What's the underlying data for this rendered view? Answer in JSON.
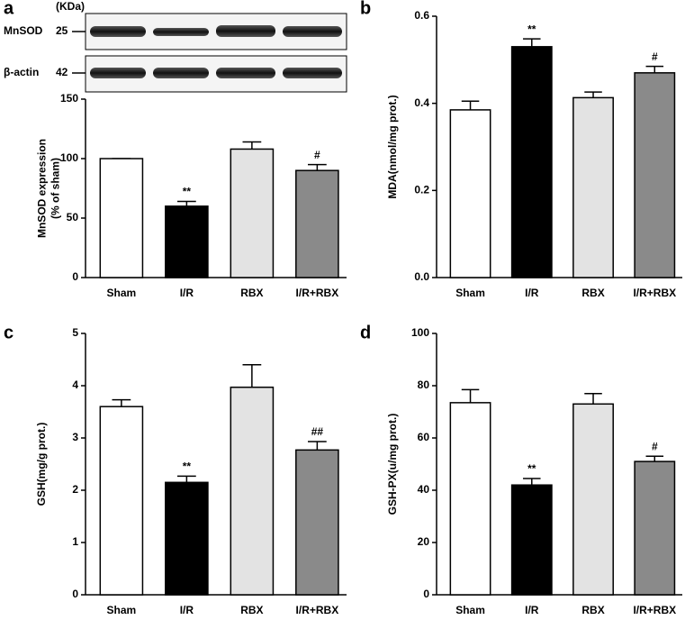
{
  "blot": {
    "unit": "(KDa)",
    "rows": [
      {
        "name": "MnSOD",
        "kda": 25
      },
      {
        "name": "β-actin",
        "kda": 42
      }
    ]
  },
  "chart_data": [
    {
      "type": "bar",
      "panel": "a",
      "ylabel": [
        "MnSOD expression",
        "(% of sham)"
      ],
      "categories": [
        "Sham",
        "I/R",
        "RBX",
        "I/R+RBX"
      ],
      "values": [
        100,
        60,
        108,
        90
      ],
      "errors": [
        0,
        4,
        6,
        5
      ],
      "annotations": [
        null,
        "**",
        null,
        "#"
      ],
      "colors": [
        "#ffffff",
        "#000000",
        "#e3e3e3",
        "#8a8a8a"
      ],
      "ylim": [
        0,
        150
      ],
      "yticks": [
        0,
        50,
        100,
        150
      ]
    },
    {
      "type": "bar",
      "panel": "b",
      "ylabel": [
        "MDA(nmol/mg prot.)"
      ],
      "categories": [
        "Sham",
        "I/R",
        "RBX",
        "I/R+RBX"
      ],
      "values": [
        0.385,
        0.53,
        0.413,
        0.47
      ],
      "errors": [
        0.02,
        0.018,
        0.013,
        0.015
      ],
      "annotations": [
        null,
        "**",
        null,
        "#"
      ],
      "colors": [
        "#ffffff",
        "#000000",
        "#e3e3e3",
        "#8a8a8a"
      ],
      "ylim": [
        0,
        0.6
      ],
      "yticks": [
        {
          "value": 0,
          "label": "0.0"
        },
        0.2,
        0.4,
        0.6
      ]
    },
    {
      "type": "bar",
      "panel": "c",
      "ylabel": [
        "GSH(mg/g prot.)"
      ],
      "categories": [
        "Sham",
        "I/R",
        "RBX",
        "I/R+RBX"
      ],
      "values": [
        3.6,
        2.15,
        3.97,
        2.77
      ],
      "errors": [
        0.13,
        0.12,
        0.43,
        0.16
      ],
      "annotations": [
        null,
        "**",
        null,
        "##"
      ],
      "colors": [
        "#ffffff",
        "#000000",
        "#e3e3e3",
        "#8a8a8a"
      ],
      "ylim": [
        0,
        5
      ],
      "yticks": [
        0,
        1,
        2,
        3,
        4,
        5
      ]
    },
    {
      "type": "bar",
      "panel": "d",
      "ylabel": [
        "GSH-PX(u/mg prot.)"
      ],
      "categories": [
        "Sham",
        "I/R",
        "RBX",
        "I/R+RBX"
      ],
      "values": [
        73.5,
        42,
        73,
        51
      ],
      "errors": [
        5,
        2.5,
        4,
        2
      ],
      "annotations": [
        null,
        "**",
        null,
        "#"
      ],
      "colors": [
        "#ffffff",
        "#000000",
        "#e3e3e3",
        "#8a8a8a"
      ],
      "ylim": [
        0,
        100
      ],
      "yticks": [
        0,
        20,
        40,
        60,
        80,
        100
      ]
    }
  ]
}
